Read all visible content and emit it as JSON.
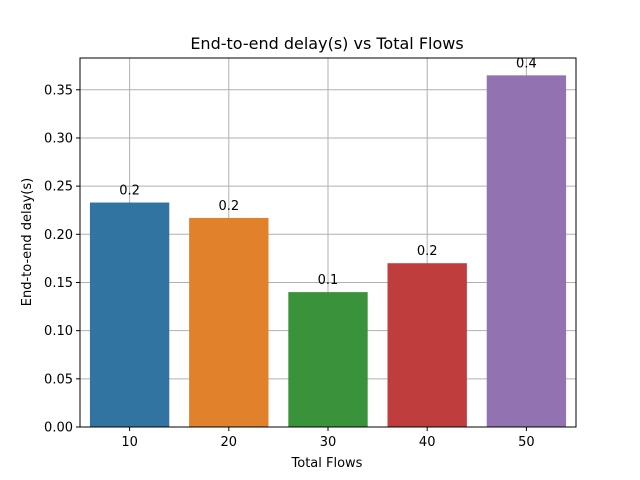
{
  "chart_data": {
    "type": "bar",
    "title": "End-to-end delay(s) vs Total Flows",
    "xlabel": "Total Flows",
    "ylabel": "End-to-end delay(s)",
    "categories": [
      "10",
      "20",
      "30",
      "40",
      "50"
    ],
    "values": [
      0.233,
      0.217,
      0.14,
      0.17,
      0.365
    ],
    "data_labels": [
      "0.2",
      "0.2",
      "0.1",
      "0.2",
      "0.4"
    ],
    "colors": [
      "#3274a1",
      "#e1812c",
      "#3a923a",
      "#c03d3e",
      "#9372b2"
    ],
    "ylim": [
      0,
      0.383
    ],
    "yticks": [
      0.0,
      0.05,
      0.1,
      0.15,
      0.2,
      0.25,
      0.3,
      0.35
    ],
    "ytick_labels": [
      "0.00",
      "0.05",
      "0.10",
      "0.15",
      "0.20",
      "0.25",
      "0.30",
      "0.35"
    ],
    "grid": true
  }
}
